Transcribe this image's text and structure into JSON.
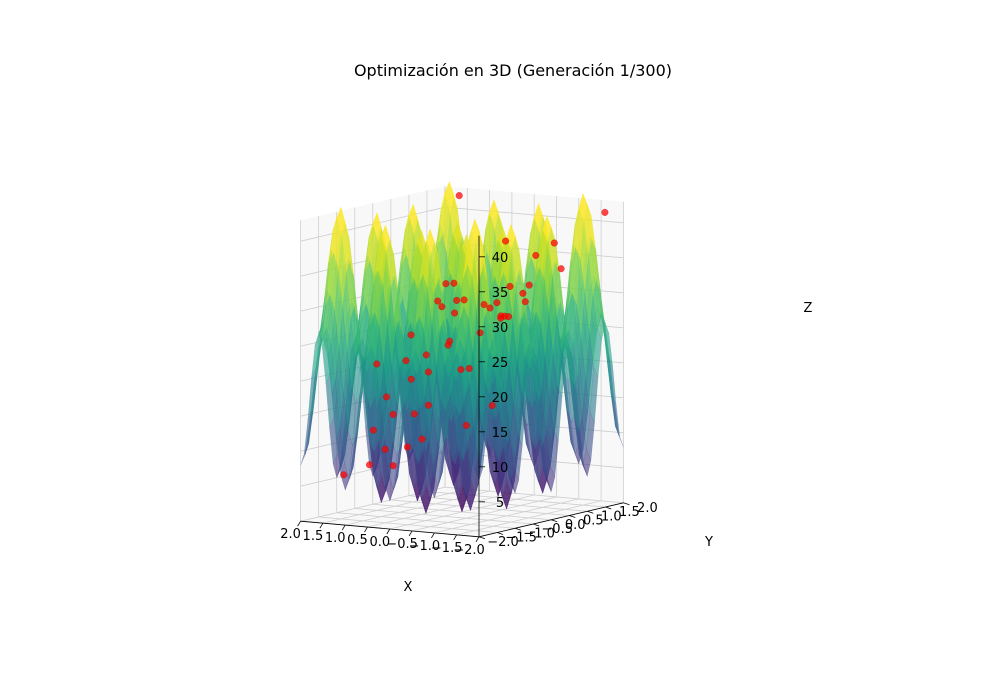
{
  "chart_data": {
    "type": "surface3d",
    "title": "Optimización en 3D (Generación 1/300)",
    "xlabel": "X",
    "ylabel": "Y",
    "zlabel": "Z",
    "xlim": [
      -2,
      2
    ],
    "ylim": [
      -2,
      2
    ],
    "zlim": [
      0,
      43
    ],
    "x_ticks": [
      "−2.0",
      "−1.5",
      "−1.0",
      "−0.5",
      "0.0",
      "0.5",
      "1.0",
      "1.5",
      "2.0"
    ],
    "y_ticks": [
      "−2.0",
      "−1.5",
      "−1.0",
      "−0.5",
      "0.0",
      "0.5",
      "1.0",
      "1.5",
      "2.0"
    ],
    "z_ticks": [
      "5",
      "10",
      "15",
      "20",
      "25",
      "30",
      "35",
      "40"
    ],
    "surface": {
      "function": "rastrigin",
      "colormap": "viridis",
      "alpha": 0.6
    },
    "points": [
      {
        "x": -1.95,
        "y": 1.55,
        "z": 42
      },
      {
        "x": -1.3,
        "y": 0.95,
        "z": 38
      },
      {
        "x": 1.6,
        "y": 1.9,
        "z": 42
      },
      {
        "x": -1.25,
        "y": 1.2,
        "z": 34
      },
      {
        "x": -0.4,
        "y": 1.55,
        "z": 35
      },
      {
        "x": 0.6,
        "y": 1.95,
        "z": 36
      },
      {
        "x": 0.3,
        "y": 1.7,
        "z": 30
      },
      {
        "x": 0.35,
        "y": 1.4,
        "z": 28
      },
      {
        "x": -1.85,
        "y": -0.6,
        "z": 33
      },
      {
        "x": -1.5,
        "y": -0.1,
        "z": 31
      },
      {
        "x": -1.6,
        "y": -0.9,
        "z": 30
      },
      {
        "x": -1.2,
        "y": -0.3,
        "z": 29
      },
      {
        "x": -0.8,
        "y": 0.3,
        "z": 28
      },
      {
        "x": -0.3,
        "y": 0.7,
        "z": 27
      },
      {
        "x": 0.0,
        "y": 0.5,
        "z": 25
      },
      {
        "x": 0.1,
        "y": 0.9,
        "z": 28
      },
      {
        "x": 0.6,
        "y": 0.8,
        "z": 29
      },
      {
        "x": 0.95,
        "y": 0.95,
        "z": 31
      },
      {
        "x": 1.3,
        "y": 1.4,
        "z": 26
      },
      {
        "x": 0.95,
        "y": 0.5,
        "z": 29
      },
      {
        "x": 0.4,
        "y": 0.15,
        "z": 24
      },
      {
        "x": 0.15,
        "y": -0.2,
        "z": 24
      },
      {
        "x": -0.3,
        "y": -0.4,
        "z": 21
      },
      {
        "x": -0.85,
        "y": -0.85,
        "z": 22
      },
      {
        "x": -1.85,
        "y": -1.45,
        "z": 18
      },
      {
        "x": -1.35,
        "y": -1.55,
        "z": 15
      },
      {
        "x": -0.6,
        "y": -1.85,
        "z": 13
      },
      {
        "x": -0.3,
        "y": -1.3,
        "z": 17
      },
      {
        "x": 0.3,
        "y": -0.95,
        "z": 15
      },
      {
        "x": 0.55,
        "y": -0.25,
        "z": 20
      },
      {
        "x": 0.8,
        "y": 0.0,
        "z": 22
      },
      {
        "x": 1.3,
        "y": 0.2,
        "z": 18
      },
      {
        "x": 1.7,
        "y": 0.55,
        "z": 20
      },
      {
        "x": 1.95,
        "y": 1.0,
        "z": 23
      },
      {
        "x": 1.95,
        "y": 1.85,
        "z": 26
      },
      {
        "x": 0.45,
        "y": -1.35,
        "z": 8
      },
      {
        "x": 0.75,
        "y": -1.2,
        "z": 10
      },
      {
        "x": 1.1,
        "y": -0.55,
        "z": 14
      },
      {
        "x": 1.3,
        "y": -0.85,
        "z": 12
      },
      {
        "x": 1.45,
        "y": -0.3,
        "z": 16
      },
      {
        "x": 0.9,
        "y": -1.45,
        "z": 8
      },
      {
        "x": 1.6,
        "y": -1.3,
        "z": 6
      },
      {
        "x": 0.05,
        "y": -1.45,
        "z": 11
      },
      {
        "x": 1.95,
        "y": 0.05,
        "z": 20
      },
      {
        "x": 1.05,
        "y": 0.85,
        "z": 31
      },
      {
        "x": -0.9,
        "y": 0.75,
        "z": 32
      },
      {
        "x": 0.2,
        "y": 0.1,
        "z": 30
      },
      {
        "x": -0.05,
        "y": 0.55,
        "z": 29
      }
    ]
  }
}
